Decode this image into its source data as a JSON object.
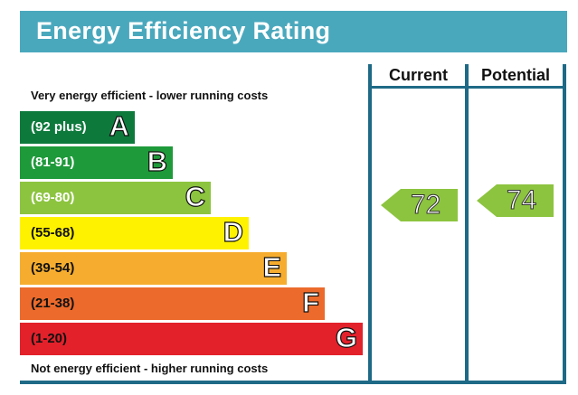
{
  "header": {
    "title": "Energy Efficiency Rating",
    "columns": [
      "Current",
      "Potential"
    ]
  },
  "captions": {
    "top": "Very energy efficient - lower running costs",
    "bottom": "Not energy efficient - higher running costs"
  },
  "chart_data": {
    "type": "bar",
    "title": "Energy Efficiency Rating",
    "bands": [
      {
        "letter": "A",
        "range": "(92 plus)",
        "min": 92,
        "max": 100,
        "color": "#0d7a3c"
      },
      {
        "letter": "B",
        "range": "(81-91)",
        "min": 81,
        "max": 91,
        "color": "#1e9a3a"
      },
      {
        "letter": "C",
        "range": "(69-80)",
        "min": 69,
        "max": 80,
        "color": "#8cc43f"
      },
      {
        "letter": "D",
        "range": "(55-68)",
        "min": 55,
        "max": 68,
        "color": "#fff200"
      },
      {
        "letter": "E",
        "range": "(39-54)",
        "min": 39,
        "max": 54,
        "color": "#f6ad2f"
      },
      {
        "letter": "F",
        "range": "(21-38)",
        "min": 21,
        "max": 38,
        "color": "#ec6a2b"
      },
      {
        "letter": "G",
        "range": "(1-20)",
        "min": 1,
        "max": 20,
        "color": "#e3212b"
      }
    ],
    "current": {
      "label": "Current",
      "value": 72,
      "band": "C",
      "color": "#8cc43f"
    },
    "potential": {
      "label": "Potential",
      "value": 74,
      "band": "C",
      "color": "#8cc43f"
    }
  }
}
